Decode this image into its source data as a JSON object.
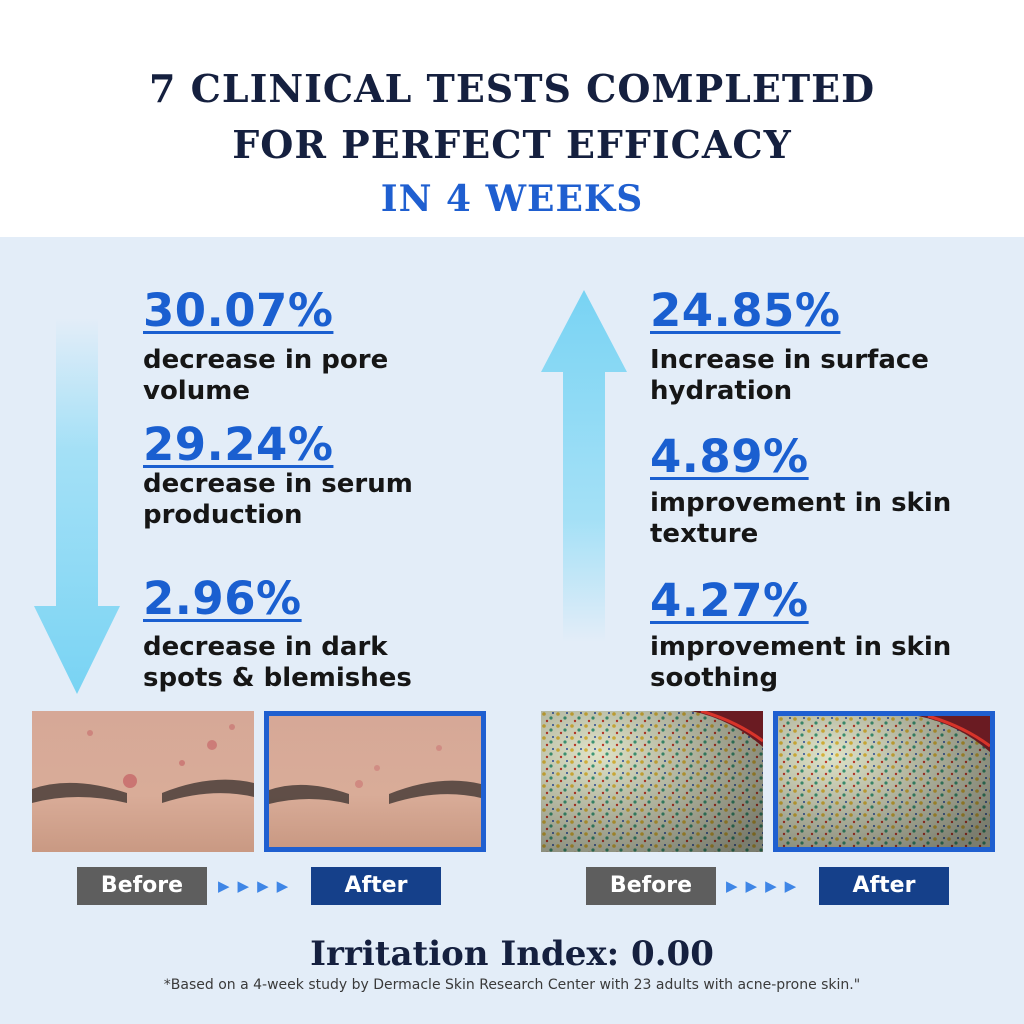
{
  "header": {
    "line1": "7 CLINICAL TESTS COMPLETED",
    "line2": "FOR PERFECT EFFICACY",
    "line3": "IN 4 WEEKS"
  },
  "left_stats": [
    {
      "value": "30.07%",
      "desc": "decrease in pore volume"
    },
    {
      "value": "29.24%",
      "desc": "decrease in serum production"
    },
    {
      "value": "2.96%",
      "desc": "decrease in dark spots & blemishes"
    }
  ],
  "right_stats": [
    {
      "value": "24.85%",
      "desc": "Increase in surface hydration"
    },
    {
      "value": "4.89%",
      "desc": "improvement in skin texture"
    },
    {
      "value": "4.27%",
      "desc": "improvement in skin soothing"
    }
  ],
  "labels": {
    "before": "Before",
    "after": "After",
    "arrows": "▶▶▶▶"
  },
  "irritation": "Irritation Index: 0.00",
  "footnote": "*Based on a 4-week study by Dermacle Skin Research Center with 23 adults with acne-prone skin.\"",
  "colors": {
    "accent": "#1f5fd0",
    "navy": "#15203f",
    "arrow": "#7fd4f3",
    "panel_bg": "#e3edf8"
  }
}
